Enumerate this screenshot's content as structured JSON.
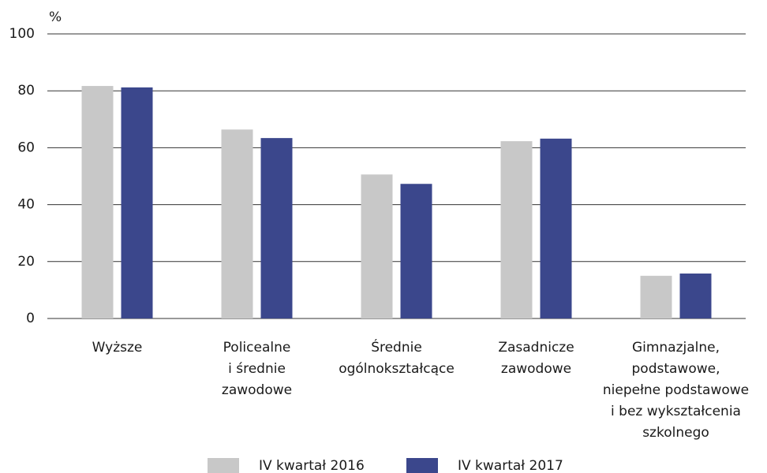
{
  "chart_data": {
    "type": "bar",
    "y_unit": "%",
    "categories": [
      "Wyższe",
      "Policealne\ni średnie\nzawodowe",
      "Średnie\nogólnokształcące",
      "Zasadnicze\nzawodowe",
      "Gimnazjalne,\npodstawowe,\nniepełne podstawowe\ni bez wykształcenia\nszkolnego"
    ],
    "series": [
      {
        "name": "IV kwartał 2016",
        "color": "#c8c8c8",
        "values": [
          81.7,
          66.4,
          50.6,
          62.3,
          15.0
        ]
      },
      {
        "name": "IV kwartał 2017",
        "color": "#3b478c",
        "values": [
          81.2,
          63.4,
          47.3,
          63.2,
          15.8
        ]
      }
    ],
    "ylim": [
      0,
      100
    ],
    "yticks": [
      0,
      20,
      40,
      60,
      80,
      100
    ],
    "grid": true
  }
}
